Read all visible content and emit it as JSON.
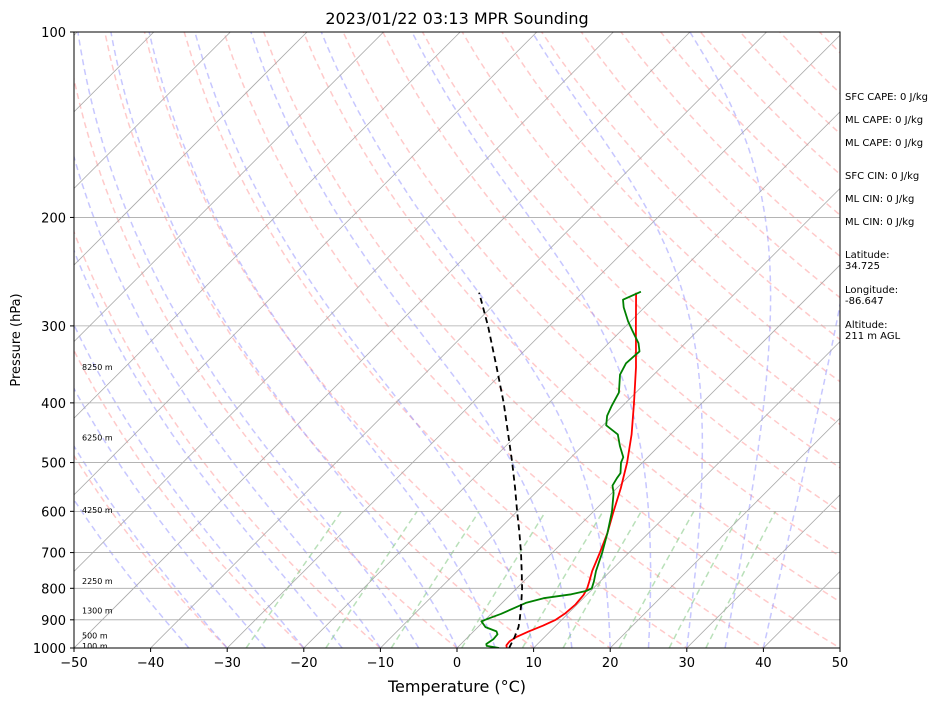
{
  "chart_data": {
    "type": "skew-t",
    "title": "2023/01/22 03:13 MPR Sounding",
    "xlabel": "Temperature (°C)",
    "ylabel": "Pressure (hPa)",
    "xlim": [
      -50,
      50
    ],
    "ylim": [
      1000,
      100
    ],
    "y_scale": "log",
    "x_ticks": [
      -50,
      -40,
      -30,
      -20,
      -10,
      0,
      10,
      20,
      30,
      40,
      50
    ],
    "y_ticks": [
      100,
      200,
      300,
      400,
      500,
      600,
      700,
      800,
      900,
      1000
    ],
    "y_grid": true,
    "height_labels": [
      {
        "label": "8250 m",
        "pressure": 350
      },
      {
        "label": "6250 m",
        "pressure": 455
      },
      {
        "label": "4250 m",
        "pressure": 597
      },
      {
        "label": "2250 m",
        "pressure": 778
      },
      {
        "label": "1300 m",
        "pressure": 870
      },
      {
        "label": "500 m",
        "pressure": 955
      },
      {
        "label": "100 m",
        "pressure": 993
      }
    ],
    "series": [
      {
        "name": "temperature",
        "color": "#ff0000",
        "points": [
          [
            1000,
            6.5
          ],
          [
            990,
            6.1
          ],
          [
            975,
            6.0
          ],
          [
            960,
            6.3
          ],
          [
            940,
            7.2
          ],
          [
            920,
            8.3
          ],
          [
            900,
            9.2
          ],
          [
            880,
            9.6
          ],
          [
            850,
            9.8
          ],
          [
            820,
            9.6
          ],
          [
            800,
            9.2
          ],
          [
            780,
            8.6
          ],
          [
            750,
            7.6
          ],
          [
            700,
            6.2
          ],
          [
            650,
            4.6
          ],
          [
            600,
            2.6
          ],
          [
            550,
            0.5
          ],
          [
            500,
            -2.0
          ],
          [
            450,
            -5.1
          ],
          [
            400,
            -8.9
          ],
          [
            350,
            -13.3
          ],
          [
            300,
            -18.7
          ],
          [
            265,
            -23.0
          ]
        ]
      },
      {
        "name": "dewpoint",
        "color": "#008000",
        "points": [
          [
            1000,
            5.5
          ],
          [
            992,
            3.6
          ],
          [
            985,
            3.3
          ],
          [
            968,
            3.6
          ],
          [
            950,
            3.5
          ],
          [
            940,
            3.0
          ],
          [
            925,
            1.0
          ],
          [
            905,
            -0.3
          ],
          [
            895,
            0.3
          ],
          [
            880,
            1.3
          ],
          [
            860,
            2.3
          ],
          [
            845,
            3.1
          ],
          [
            830,
            4.8
          ],
          [
            818,
            7.9
          ],
          [
            808,
            9.4
          ],
          [
            800,
            9.8
          ],
          [
            780,
            9.2
          ],
          [
            750,
            8.1
          ],
          [
            700,
            6.5
          ],
          [
            650,
            4.6
          ],
          [
            600,
            2.4
          ],
          [
            560,
            0.2
          ],
          [
            545,
            -0.9
          ],
          [
            530,
            -1.3
          ],
          [
            520,
            -1.5
          ],
          [
            500,
            -2.8
          ],
          [
            490,
            -3.2
          ],
          [
            470,
            -5.1
          ],
          [
            450,
            -6.9
          ],
          [
            435,
            -9.6
          ],
          [
            420,
            -10.7
          ],
          [
            405,
            -11.4
          ],
          [
            385,
            -12.2
          ],
          [
            360,
            -14.4
          ],
          [
            345,
            -15.1
          ],
          [
            330,
            -14.9
          ],
          [
            320,
            -16.1
          ],
          [
            305,
            -18.6
          ],
          [
            295,
            -20.3
          ],
          [
            280,
            -22.7
          ],
          [
            272,
            -23.8
          ],
          [
            264,
            -22.5
          ]
        ]
      },
      {
        "name": "parcel",
        "color": "#000000",
        "dashed": true,
        "points": [
          [
            1000,
            6.8
          ],
          [
            960,
            6.1
          ],
          [
            925,
            5.3
          ],
          [
            900,
            4.5
          ],
          [
            850,
            2.7
          ],
          [
            800,
            0.7
          ],
          [
            750,
            -1.6
          ],
          [
            700,
            -4.1
          ],
          [
            650,
            -6.9
          ],
          [
            600,
            -10.0
          ],
          [
            550,
            -13.3
          ],
          [
            500,
            -17.0
          ],
          [
            450,
            -21.2
          ],
          [
            400,
            -25.9
          ],
          [
            350,
            -31.5
          ],
          [
            300,
            -38.0
          ],
          [
            265,
            -43.5
          ]
        ]
      }
    ],
    "background_lines": {
      "dry_adiabat_color": "#ff9f9f",
      "moist_adiabat_color": "#8f8fff",
      "mixing_ratio_color": "#7fc77f",
      "isotherm_color": "#a9a9a9"
    }
  },
  "side_panel": [
    "SFC CAPE: 0 J/kg",
    "ML CAPE: 0 J/kg",
    "ML CAPE: 0 J/kg",
    "SFC CIN: 0 J/kg",
    "ML CIN: 0 J/kg",
    "ML CIN: 0 J/kg",
    "Latitude:",
    "34.725",
    "Longitude:",
    "-86.647",
    "Altitude:",
    "211 m AGL"
  ]
}
